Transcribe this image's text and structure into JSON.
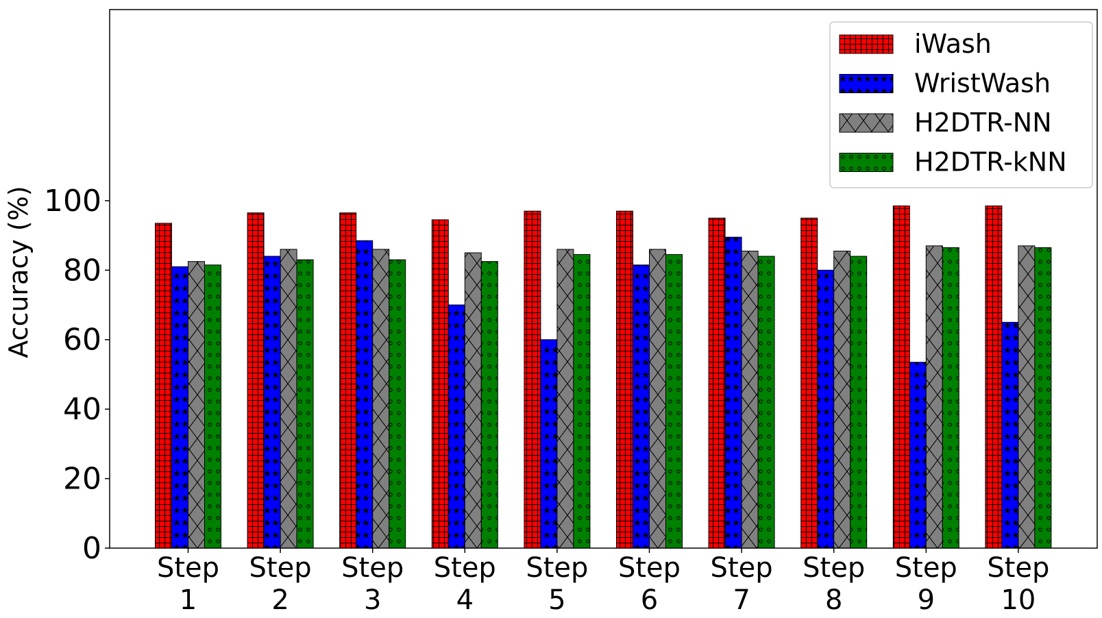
{
  "chart_data": {
    "type": "bar",
    "ylabel": "Accuracy (%)",
    "xlabel": "",
    "ylim": [
      0,
      155
    ],
    "yticks": [
      0,
      20,
      40,
      60,
      80,
      100
    ],
    "grid": false,
    "legend_position": "top-right",
    "categories": [
      [
        "Step",
        "1"
      ],
      [
        "Step",
        "2"
      ],
      [
        "Step",
        "3"
      ],
      [
        "Step",
        "4"
      ],
      [
        "Step",
        "5"
      ],
      [
        "Step",
        "6"
      ],
      [
        "Step",
        "7"
      ],
      [
        "Step",
        "8"
      ],
      [
        "Step",
        "9"
      ],
      [
        "Step",
        "10"
      ]
    ],
    "series": [
      {
        "name": "iWash",
        "color": "#ff0000",
        "pattern": "grid",
        "values": [
          93.5,
          96.5,
          96.5,
          94.5,
          97,
          97,
          95,
          95,
          98.5,
          98.5
        ]
      },
      {
        "name": "WristWash",
        "color": "#0000ff",
        "pattern": "stars",
        "values": [
          81,
          84,
          88.5,
          70,
          60,
          81.5,
          89.5,
          80,
          53.5,
          65
        ]
      },
      {
        "name": "H2DTR-NN",
        "color": "#808080",
        "pattern": "crosshatch",
        "values": [
          82.5,
          86,
          86,
          85,
          86,
          86,
          85.5,
          85.5,
          87,
          87
        ]
      },
      {
        "name": "H2DTR-kNN",
        "color": "#008000",
        "pattern": "circles",
        "values": [
          81.5,
          83,
          83,
          82.5,
          84.5,
          84.5,
          84,
          84,
          86.5,
          86.5
        ]
      }
    ]
  }
}
